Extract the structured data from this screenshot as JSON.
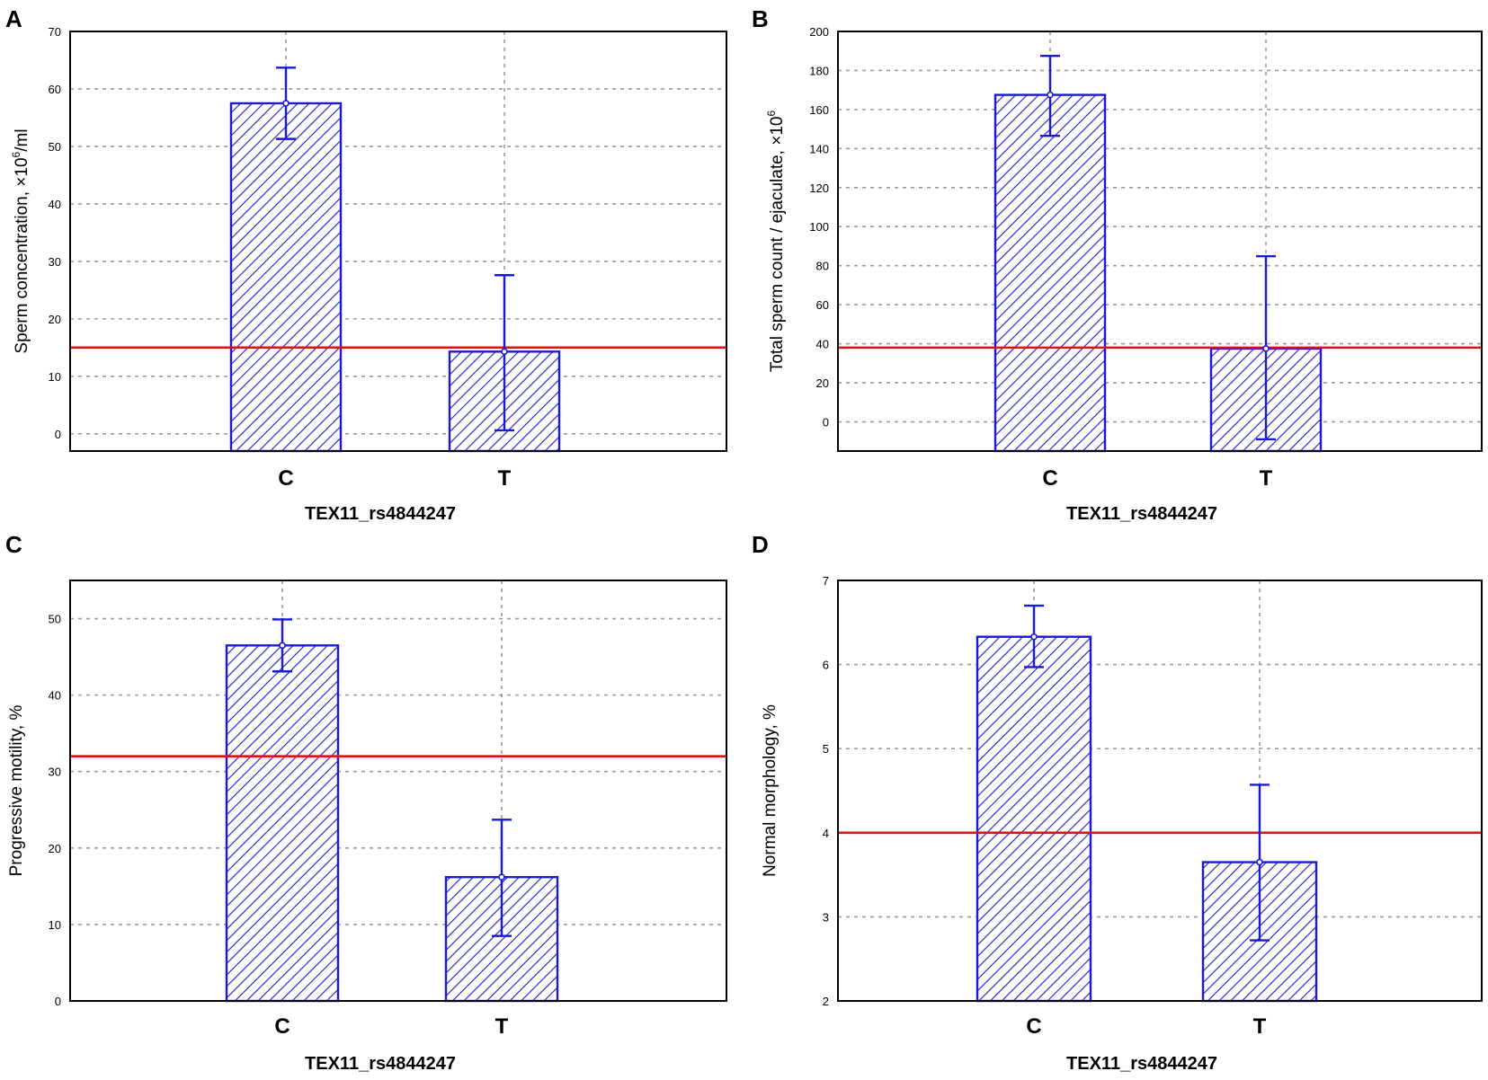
{
  "colors": {
    "bar": "#1a1ad4",
    "threshold": "#e01010",
    "grid": "#9a9aa8",
    "axis": "#000000"
  },
  "chart_data": [
    {
      "type": "bar",
      "panel": "A",
      "categories": [
        "C",
        "T"
      ],
      "values": [
        57.5,
        14.3
      ],
      "error_high": [
        63.7,
        27.6
      ],
      "error_low": [
        51.3,
        0.6
      ],
      "threshold": 15,
      "xlabel": "TEX11_rs4844247",
      "ylabel_main": "Sperm concentration, ×10",
      "ylabel_sup": "6",
      "ylabel_tail": "/ml",
      "ylim": [
        -3,
        70
      ],
      "yticks": [
        0,
        10,
        20,
        30,
        40,
        50,
        60,
        70
      ],
      "grid": true
    },
    {
      "type": "bar",
      "panel": "B",
      "categories": [
        "C",
        "T"
      ],
      "values": [
        167.5,
        37.5
      ],
      "error_high": [
        187.5,
        84.8
      ],
      "error_low": [
        146.5,
        -9.0
      ],
      "threshold": 38,
      "xlabel": "TEX11_rs4844247",
      "ylabel_main": "Total sperm count / ejaculate, ×10",
      "ylabel_sup": "6",
      "ylabel_tail": "",
      "ylim": [
        -15,
        200
      ],
      "yticks": [
        0,
        20,
        40,
        60,
        80,
        100,
        120,
        140,
        160,
        180,
        200
      ],
      "grid": true
    },
    {
      "type": "bar",
      "panel": "C",
      "categories": [
        "C",
        "T"
      ],
      "values": [
        46.5,
        16.2
      ],
      "error_high": [
        49.9,
        23.7
      ],
      "error_low": [
        43.1,
        8.5
      ],
      "threshold": 32,
      "xlabel": "TEX11_rs4844247",
      "ylabel_main": "Progressive motility, %",
      "ylabel_sup": "",
      "ylabel_tail": "",
      "ylim": [
        0,
        55
      ],
      "yticks": [
        0,
        10,
        20,
        30,
        40,
        50
      ],
      "grid": true
    },
    {
      "type": "bar",
      "panel": "D",
      "categories": [
        "C",
        "T"
      ],
      "values": [
        6.33,
        3.65
      ],
      "error_high": [
        6.7,
        4.57
      ],
      "error_low": [
        5.97,
        2.72
      ],
      "threshold": 4,
      "xlabel": "TEX11_rs4844247",
      "ylabel_main": "Normal morphology, %",
      "ylabel_sup": "",
      "ylabel_tail": "",
      "ylim": [
        2,
        7
      ],
      "yticks": [
        2,
        3,
        4,
        5,
        6,
        7
      ],
      "grid": true
    }
  ]
}
